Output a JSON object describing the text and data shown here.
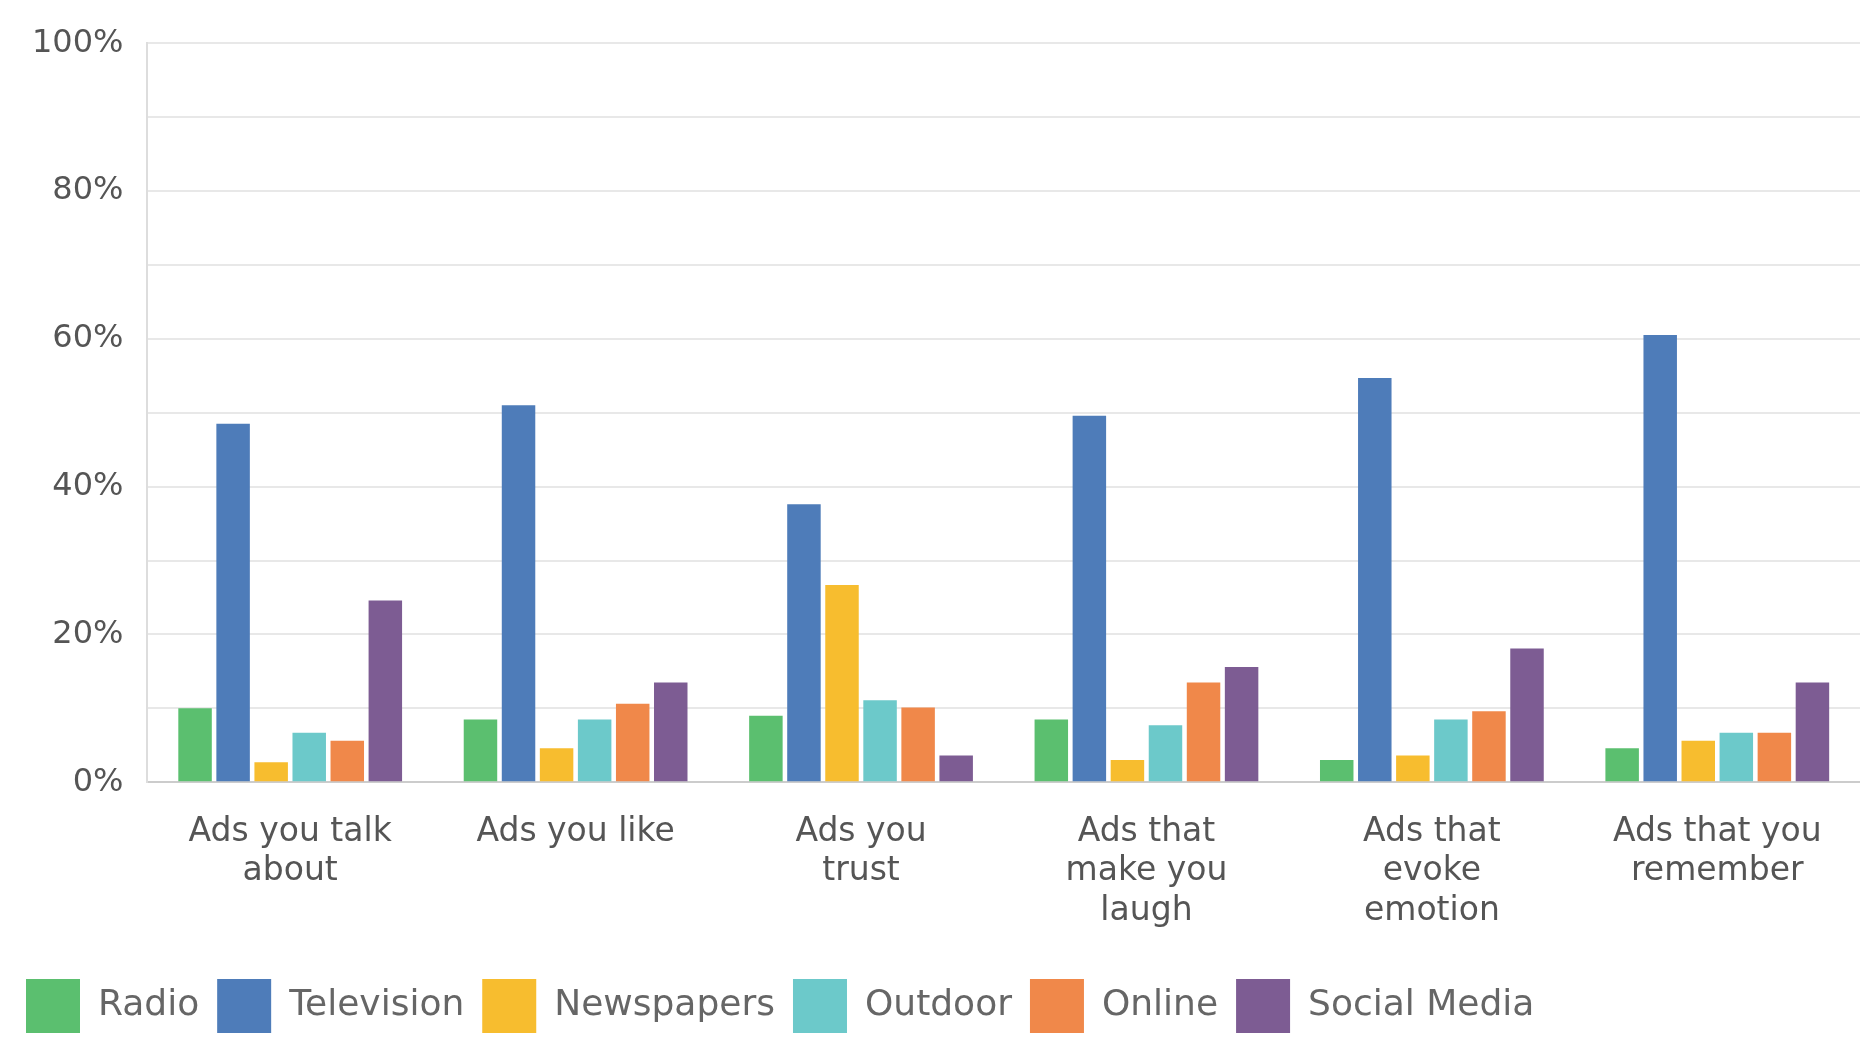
{
  "chart_data": {
    "type": "bar",
    "categories": [
      "Ads you talk about",
      "Ads you like",
      "Ads you trust",
      "Ads that make you laugh",
      "Ads that evoke emotion",
      "Ads that you remember"
    ],
    "series": [
      {
        "name": "Radio",
        "color": "#5bbf6f",
        "values": [
          10,
          8.5,
          9,
          8.5,
          3,
          4.6
        ]
      },
      {
        "name": "Television",
        "color": "#4e7cb9",
        "values": [
          48.5,
          51,
          37.6,
          49.6,
          54.7,
          60.5
        ]
      },
      {
        "name": "Newspapers",
        "color": "#f7bd2f",
        "values": [
          2.7,
          4.6,
          26.7,
          3,
          3.6,
          5.6
        ]
      },
      {
        "name": "Outdoor",
        "color": "#6cc9ca",
        "values": [
          6.7,
          8.5,
          11.1,
          7.7,
          8.5,
          6.7
        ]
      },
      {
        "name": "Online",
        "color": "#f0884a",
        "values": [
          5.6,
          10.6,
          10.1,
          13.5,
          9.6,
          6.7
        ]
      },
      {
        "name": "Social Media",
        "color": "#7d5c93",
        "values": [
          24.6,
          13.5,
          3.6,
          15.6,
          18.1,
          13.5
        ]
      }
    ],
    "ylim": [
      0,
      100
    ],
    "yticks": [
      {
        "value": 0,
        "label": "0%"
      },
      {
        "value": 10,
        "label": null
      },
      {
        "value": 20,
        "label": "20%"
      },
      {
        "value": 30,
        "label": null
      },
      {
        "value": 40,
        "label": "40%"
      },
      {
        "value": 50,
        "label": null
      },
      {
        "value": 60,
        "label": "60%"
      },
      {
        "value": 70,
        "label": null
      },
      {
        "value": 80,
        "label": "80%"
      },
      {
        "value": 90,
        "label": null
      },
      {
        "value": 100,
        "label": "100%"
      }
    ],
    "grid": "y",
    "legend": "bottom left"
  }
}
